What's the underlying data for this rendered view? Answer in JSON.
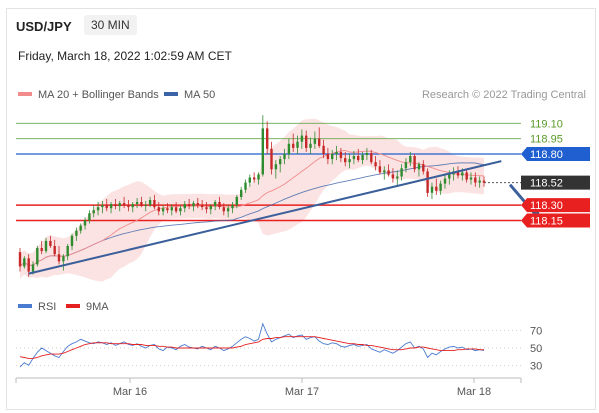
{
  "header": {
    "symbol": "USD/JPY",
    "timeframe": "30 MIN",
    "datetime": "Friday, March 18, 2022 1:02:59 AM CET"
  },
  "legend": {
    "ma20": {
      "label": "MA 20 + Bollinger Bands",
      "color": "#f28c8c"
    },
    "ma50": {
      "label": "MA 50",
      "color": "#3a63a8"
    },
    "research": "Research © 2022 Trading Central",
    "rsi": {
      "label": "RSI",
      "color": "#4a7bd0"
    },
    "ma9": {
      "label": "9MA",
      "color": "#e52020"
    }
  },
  "colors": {
    "up": "#2e8b2e",
    "down": "#c62828",
    "support": "#e82020",
    "resistance_green": "#6aa84f",
    "resistance_blue": "#1f5fcf",
    "current": "#333333",
    "trendline": "#3a5f9a",
    "band_fill": "#fbe3e3"
  },
  "chart_data": [
    {
      "type": "candlestick",
      "title": "USD/JPY 30 MIN",
      "ylim": [
        117.45,
        119.25
      ],
      "xlabel": "",
      "ylabel": "",
      "x_ticks": [
        "Mar 16",
        "Mar 17",
        "Mar 18"
      ],
      "price_levels": [
        {
          "value": 119.1,
          "label": "119.10",
          "kind": "resistance_green"
        },
        {
          "value": 118.95,
          "label": "118.95",
          "kind": "resistance_green"
        },
        {
          "value": 118.8,
          "label": "118.80",
          "kind": "resistance_blue"
        },
        {
          "value": 118.52,
          "label": "118.52",
          "kind": "current"
        },
        {
          "value": 118.3,
          "label": "118.30",
          "kind": "support"
        },
        {
          "value": 118.15,
          "label": "118.15",
          "kind": "support"
        }
      ],
      "trendline": {
        "from": {
          "bar": 2,
          "price": 117.63
        },
        "to": {
          "bar": 111,
          "price": 118.73
        }
      },
      "forecast_arrow": {
        "from": {
          "bar": 113,
          "price": 118.5
        },
        "to": {
          "bar": 120,
          "price": 118.16
        }
      },
      "candles": [
        [
          117.84,
          117.88,
          117.65,
          117.7
        ],
        [
          117.7,
          117.8,
          117.68,
          117.78
        ],
        [
          117.78,
          117.82,
          117.6,
          117.65
        ],
        [
          117.65,
          117.75,
          117.62,
          117.72
        ],
        [
          117.72,
          117.9,
          117.7,
          117.88
        ],
        [
          117.88,
          117.95,
          117.82,
          117.85
        ],
        [
          117.85,
          117.98,
          117.83,
          117.95
        ],
        [
          117.95,
          118.0,
          117.88,
          117.9
        ],
        [
          117.9,
          117.96,
          117.8,
          117.82
        ],
        [
          117.82,
          117.9,
          117.72,
          117.75
        ],
        [
          117.75,
          117.82,
          117.66,
          117.8
        ],
        [
          117.8,
          117.92,
          117.76,
          117.9
        ],
        [
          117.9,
          118.02,
          117.86,
          118.0
        ],
        [
          118.0,
          118.08,
          117.95,
          118.05
        ],
        [
          118.05,
          118.12,
          118.02,
          118.1
        ],
        [
          118.1,
          118.18,
          118.06,
          118.15
        ],
        [
          118.15,
          118.25,
          118.12,
          118.22
        ],
        [
          118.22,
          118.3,
          118.18,
          118.25
        ],
        [
          118.25,
          118.33,
          118.2,
          118.28
        ],
        [
          118.28,
          118.34,
          118.22,
          118.3
        ],
        [
          118.3,
          118.36,
          118.24,
          118.27
        ],
        [
          118.27,
          118.33,
          118.22,
          118.31
        ],
        [
          118.31,
          118.36,
          118.26,
          118.29
        ],
        [
          118.29,
          118.34,
          118.24,
          118.32
        ],
        [
          118.32,
          118.38,
          118.27,
          118.3
        ],
        [
          118.3,
          118.35,
          118.24,
          118.28
        ],
        [
          118.28,
          118.33,
          118.23,
          118.31
        ],
        [
          118.31,
          118.37,
          118.27,
          118.33
        ],
        [
          118.33,
          118.38,
          118.28,
          118.29
        ],
        [
          118.29,
          118.34,
          118.24,
          118.3
        ],
        [
          118.3,
          118.38,
          118.28,
          118.35
        ],
        [
          118.35,
          118.4,
          118.26,
          118.28
        ],
        [
          118.28,
          118.33,
          118.2,
          118.24
        ],
        [
          118.24,
          118.3,
          118.2,
          118.27
        ],
        [
          118.27,
          118.32,
          118.22,
          118.25
        ],
        [
          118.25,
          118.31,
          118.2,
          118.28
        ],
        [
          118.28,
          118.33,
          118.22,
          118.24
        ],
        [
          118.24,
          118.3,
          118.2,
          118.27
        ],
        [
          118.27,
          118.34,
          118.23,
          118.31
        ],
        [
          118.31,
          118.36,
          118.26,
          118.29
        ],
        [
          118.29,
          118.34,
          118.24,
          118.32
        ],
        [
          118.32,
          118.37,
          118.27,
          118.3
        ],
        [
          118.3,
          118.35,
          118.25,
          118.28
        ],
        [
          118.28,
          118.33,
          118.22,
          118.26
        ],
        [
          118.26,
          118.31,
          118.21,
          118.29
        ],
        [
          118.29,
          118.35,
          118.25,
          118.33
        ],
        [
          118.33,
          118.38,
          118.26,
          118.28
        ],
        [
          118.28,
          118.32,
          118.2,
          118.24
        ],
        [
          118.24,
          118.3,
          118.18,
          118.27
        ],
        [
          118.27,
          118.33,
          118.22,
          118.3
        ],
        [
          118.3,
          118.4,
          118.27,
          118.38
        ],
        [
          118.38,
          118.48,
          118.35,
          118.45
        ],
        [
          118.45,
          118.55,
          118.42,
          118.52
        ],
        [
          118.52,
          118.6,
          118.48,
          118.57
        ],
        [
          118.57,
          118.62,
          118.52,
          118.55
        ],
        [
          118.55,
          118.62,
          118.5,
          118.6
        ],
        [
          118.6,
          119.18,
          118.58,
          119.05
        ],
        [
          119.05,
          119.12,
          118.8,
          118.85
        ],
        [
          118.85,
          118.92,
          118.6,
          118.65
        ],
        [
          118.65,
          118.74,
          118.56,
          118.7
        ],
        [
          118.7,
          118.78,
          118.62,
          118.75
        ],
        [
          118.75,
          118.85,
          118.7,
          118.8
        ],
        [
          118.8,
          118.95,
          118.75,
          118.9
        ],
        [
          118.9,
          119.0,
          118.82,
          118.86
        ],
        [
          118.86,
          118.98,
          118.8,
          118.92
        ],
        [
          118.92,
          119.04,
          118.85,
          118.98
        ],
        [
          118.98,
          119.03,
          118.82,
          118.86
        ],
        [
          118.86,
          118.96,
          118.8,
          118.9
        ],
        [
          118.9,
          119.02,
          118.85,
          118.95
        ],
        [
          118.95,
          119.06,
          118.86,
          118.88
        ],
        [
          118.88,
          118.94,
          118.76,
          118.8
        ],
        [
          118.8,
          118.86,
          118.7,
          118.75
        ],
        [
          118.75,
          118.84,
          118.7,
          118.8
        ],
        [
          118.8,
          118.88,
          118.74,
          118.82
        ],
        [
          118.82,
          118.86,
          118.72,
          118.76
        ],
        [
          118.76,
          118.82,
          118.68,
          118.72
        ],
        [
          118.72,
          118.8,
          118.66,
          118.75
        ],
        [
          118.75,
          118.83,
          118.7,
          118.78
        ],
        [
          118.78,
          118.85,
          118.72,
          118.74
        ],
        [
          118.74,
          118.82,
          118.7,
          118.79
        ],
        [
          118.79,
          118.86,
          118.74,
          118.81
        ],
        [
          118.81,
          118.84,
          118.7,
          118.72
        ],
        [
          118.72,
          118.78,
          118.64,
          118.68
        ],
        [
          118.68,
          118.74,
          118.6,
          118.62
        ],
        [
          118.62,
          118.68,
          118.55,
          118.64
        ],
        [
          118.64,
          118.7,
          118.58,
          118.6
        ],
        [
          118.6,
          118.66,
          118.52,
          118.56
        ],
        [
          118.56,
          118.64,
          118.48,
          118.58
        ],
        [
          118.58,
          118.7,
          118.54,
          118.66
        ],
        [
          118.66,
          118.76,
          118.62,
          118.72
        ],
        [
          118.72,
          118.82,
          118.68,
          118.78
        ],
        [
          118.78,
          118.8,
          118.62,
          118.65
        ],
        [
          118.65,
          118.72,
          118.58,
          118.7
        ],
        [
          118.7,
          118.74,
          118.6,
          118.63
        ],
        [
          118.63,
          118.66,
          118.38,
          118.42
        ],
        [
          118.42,
          118.52,
          118.36,
          118.48
        ],
        [
          118.48,
          118.56,
          118.4,
          118.44
        ],
        [
          118.44,
          118.54,
          118.4,
          118.51
        ],
        [
          118.51,
          118.6,
          118.46,
          118.56
        ],
        [
          118.56,
          118.64,
          118.5,
          118.6
        ],
        [
          118.6,
          118.67,
          118.54,
          118.63
        ],
        [
          118.63,
          118.68,
          118.56,
          118.59
        ],
        [
          118.59,
          118.66,
          118.54,
          118.62
        ],
        [
          118.62,
          118.65,
          118.52,
          118.55
        ],
        [
          118.55,
          118.62,
          118.5,
          118.57
        ],
        [
          118.57,
          118.62,
          118.48,
          118.52
        ],
        [
          118.52,
          118.58,
          118.47,
          118.54
        ],
        [
          118.54,
          118.58,
          118.48,
          118.52
        ]
      ]
    },
    {
      "type": "line",
      "title": "RSI",
      "ylim": [
        20,
        80
      ],
      "y_ticks": [
        70,
        50,
        30
      ],
      "series": [
        {
          "name": "RSI",
          "values": [
            28,
            33,
            30,
            38,
            45,
            50,
            47,
            44,
            41,
            39,
            46,
            52,
            55,
            57,
            60,
            58,
            56,
            55,
            57,
            56,
            54,
            56,
            53,
            55,
            57,
            54,
            53,
            55,
            52,
            50,
            53,
            54,
            49,
            47,
            51,
            50,
            48,
            52,
            54,
            51,
            50,
            49,
            52,
            50,
            48,
            52,
            50,
            47,
            49,
            52,
            56,
            60,
            63,
            61,
            58,
            60,
            78,
            66,
            57,
            60,
            62,
            64,
            66,
            62,
            64,
            65,
            60,
            62,
            63,
            58,
            55,
            54,
            56,
            55,
            52,
            51,
            53,
            54,
            52,
            53,
            54,
            49,
            47,
            45,
            48,
            46,
            44,
            47,
            51,
            55,
            57,
            50,
            52,
            49,
            39,
            44,
            42,
            46,
            49,
            51,
            52,
            50,
            51,
            48,
            49,
            47,
            48,
            47
          ]
        },
        {
          "name": "9MA",
          "values": [
            40,
            39,
            38,
            38,
            39,
            41,
            42,
            43,
            43,
            43,
            44,
            46,
            48,
            50,
            52,
            54,
            55,
            56,
            56,
            56,
            56,
            55,
            55,
            55,
            55,
            55,
            54,
            54,
            54,
            53,
            53,
            53,
            52,
            52,
            51,
            51,
            50,
            50,
            50,
            50,
            50,
            50,
            50,
            50,
            50,
            50,
            50,
            50,
            50,
            50,
            51,
            52,
            54,
            55,
            56,
            57,
            60,
            61,
            61,
            62,
            62,
            63,
            63,
            63,
            63,
            63,
            63,
            63,
            63,
            62,
            61,
            60,
            59,
            58,
            57,
            56,
            55,
            55,
            54,
            54,
            53,
            53,
            52,
            51,
            50,
            49,
            48,
            48,
            48,
            49,
            50,
            50,
            51,
            51,
            50,
            49,
            48,
            47,
            47,
            47,
            47,
            48,
            48,
            49,
            49,
            49,
            48,
            48
          ]
        }
      ]
    }
  ]
}
